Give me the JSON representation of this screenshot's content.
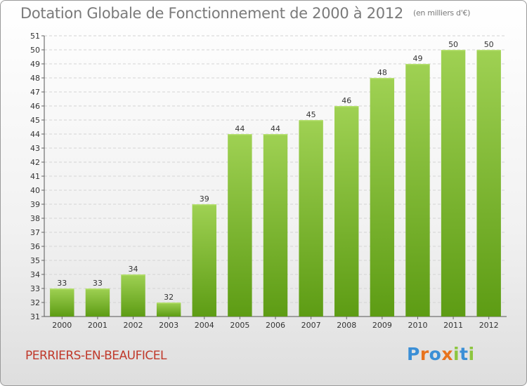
{
  "title": "Dotation Globale de Fonctionnement de 2000 à 2012",
  "unit": "(en milliers d'€)",
  "commune": "PERRIERS-EN-BEAUFICEL",
  "logo": {
    "letters": [
      "P",
      "r",
      "o",
      "x",
      "i",
      "t",
      "i"
    ],
    "colors": [
      "#3b8fd6",
      "#e8731e",
      "#3b8fd6",
      "#e8731e",
      "#8dc63f",
      "#3b8fd6",
      "#8dc63f"
    ]
  },
  "chart_data": {
    "type": "bar",
    "categories": [
      "2000",
      "2001",
      "2002",
      "2003",
      "2004",
      "2005",
      "2006",
      "2007",
      "2008",
      "2009",
      "2010",
      "2011",
      "2012"
    ],
    "values": [
      33,
      33,
      34,
      32,
      39,
      44,
      44,
      45,
      46,
      48,
      49,
      50,
      50
    ],
    "ylim": [
      31,
      51
    ],
    "yticks": [
      31,
      32,
      33,
      34,
      35,
      36,
      37,
      38,
      39,
      40,
      41,
      42,
      43,
      44,
      45,
      46,
      47,
      48,
      49,
      50,
      51
    ],
    "grid": true,
    "bar_color_top": "#9fd153",
    "bar_color_bottom": "#5d9c14"
  }
}
